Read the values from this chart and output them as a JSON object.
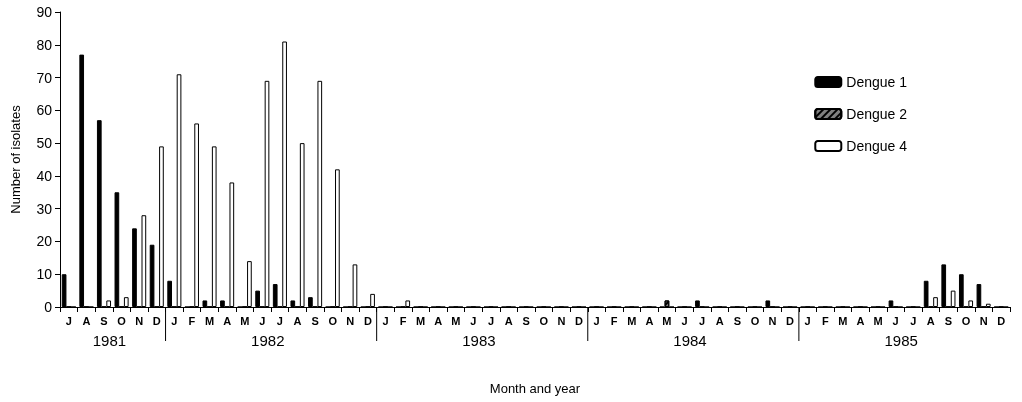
{
  "chart_data": {
    "type": "bar",
    "xlabel": "Month and year",
    "ylabel": "Number of isolates",
    "categories": [
      "J",
      "A",
      "S",
      "O",
      "N",
      "D",
      "J",
      "F",
      "M",
      "A",
      "M",
      "J",
      "J",
      "A",
      "S",
      "O",
      "N",
      "D",
      "J",
      "F",
      "M",
      "A",
      "M",
      "J",
      "J",
      "A",
      "S",
      "O",
      "N",
      "D",
      "J",
      "F",
      "M",
      "A",
      "M",
      "J",
      "J",
      "A",
      "S",
      "O",
      "N",
      "D",
      "J",
      "F",
      "M",
      "A",
      "M",
      "J",
      "J",
      "A",
      "S",
      "O",
      "N",
      "D"
    ],
    "series": [
      {
        "name": "Dengue 1",
        "color": "#000000",
        "values": [
          10,
          77,
          57,
          35,
          24,
          19,
          8,
          0,
          2,
          2,
          0,
          5,
          7,
          2,
          3,
          0,
          0,
          0,
          0,
          0,
          0,
          0,
          0,
          0,
          0,
          0,
          0,
          0,
          0,
          0,
          0,
          0,
          0,
          0,
          0,
          0,
          2,
          0,
          0,
          0,
          2,
          0,
          0,
          0,
          0,
          0,
          0,
          2,
          0,
          8,
          13,
          10,
          7,
          0
        ]
      },
      {
        "name": "Dengue 2",
        "color": "#808080",
        "values": [
          0,
          0,
          0,
          0,
          0,
          0,
          0,
          0,
          0,
          0,
          0,
          0,
          0,
          0,
          0,
          0,
          0,
          0,
          0,
          0,
          0,
          0,
          0,
          0,
          0,
          0,
          0,
          0,
          0,
          0,
          0,
          0,
          0,
          0,
          2,
          0,
          0,
          0,
          0,
          0,
          0,
          0,
          0,
          0,
          0,
          0,
          0,
          0,
          0,
          0,
          0,
          0,
          0,
          0
        ]
      },
      {
        "name": "Dengue 4",
        "color": "#ffffff",
        "values": [
          0,
          0,
          2,
          3,
          28,
          49,
          71,
          56,
          49,
          38,
          14,
          69,
          81,
          50,
          69,
          42,
          13,
          4,
          0,
          2,
          0,
          0,
          0,
          0,
          0,
          0,
          0,
          0,
          0,
          0,
          0,
          0,
          0,
          0,
          0,
          0,
          0,
          0,
          0,
          0,
          0,
          0,
          0,
          0,
          0,
          0,
          0,
          0,
          0,
          3,
          5,
          2,
          1,
          0
        ]
      }
    ],
    "annotations": [
      "1981",
      "1982",
      "1983",
      "1984",
      "1985"
    ],
    "ylim": [
      0,
      90
    ],
    "yticks": [
      0,
      10,
      20,
      30,
      40,
      50,
      60,
      70,
      80,
      90
    ],
    "grid": false,
    "legend": "top right"
  }
}
